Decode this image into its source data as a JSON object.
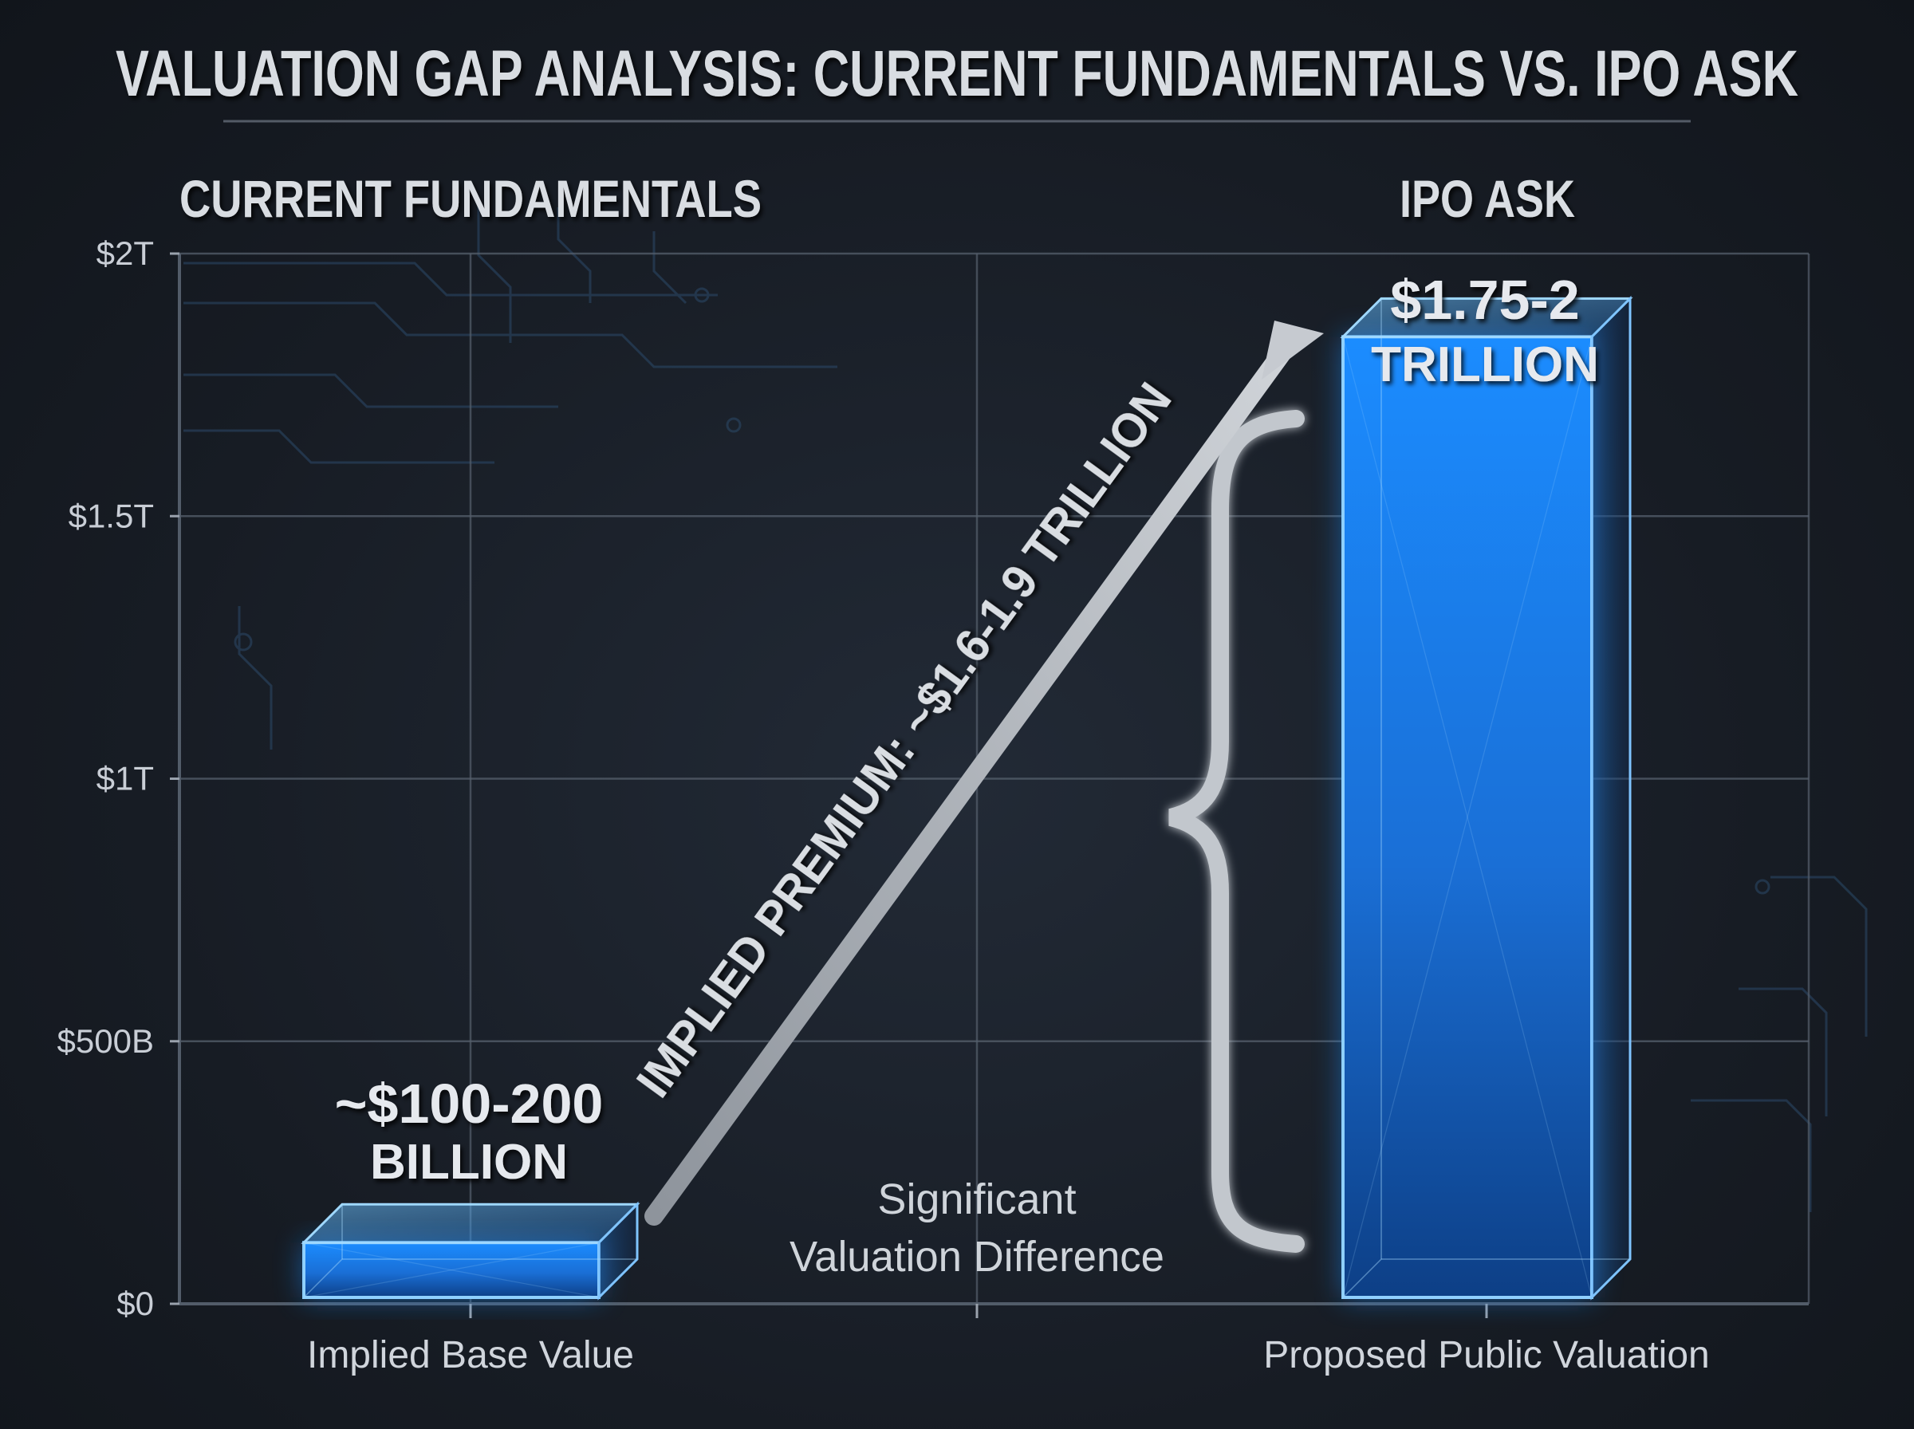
{
  "title": "VALUATION GAP ANALYSIS: CURRENT FUNDAMENTALS VS. IPO ASK",
  "left_heading": "CURRENT FUNDAMENTALS",
  "right_heading": "IPO ASK",
  "arrow_label": "IMPLIED PREMIUM: ~$1.6-1.9 TRILLION",
  "gap_note_line1": "Significant",
  "gap_note_line2": "Valuation Difference",
  "colors": {
    "background": "#171c24",
    "bar": "#1e8fff",
    "bar_glow": "#3aa6ff",
    "text": "#d9dde2",
    "grid": "#5b6370",
    "arrow": "#b9bec6"
  },
  "chart_data": {
    "type": "bar",
    "categories": [
      "Implied Base Value",
      "Proposed Public Valuation"
    ],
    "values": [
      150,
      1875
    ],
    "value_ranges": [
      [
        100,
        200
      ],
      [
        1750,
        2000
      ]
    ],
    "units": "billions USD",
    "ylim": [
      0,
      2000
    ],
    "yticks": [
      0,
      500,
      1000,
      1500,
      2000
    ],
    "ytick_labels": [
      "$0",
      "$500B",
      "$1T",
      "$1.5T",
      "$2T"
    ],
    "data_labels": [
      {
        "line1": "~$100-200",
        "line2": "BILLION"
      },
      {
        "line1": "$1.75-2",
        "line2": "TRILLION"
      }
    ],
    "xlabel": "",
    "ylabel": "",
    "grid": true
  }
}
